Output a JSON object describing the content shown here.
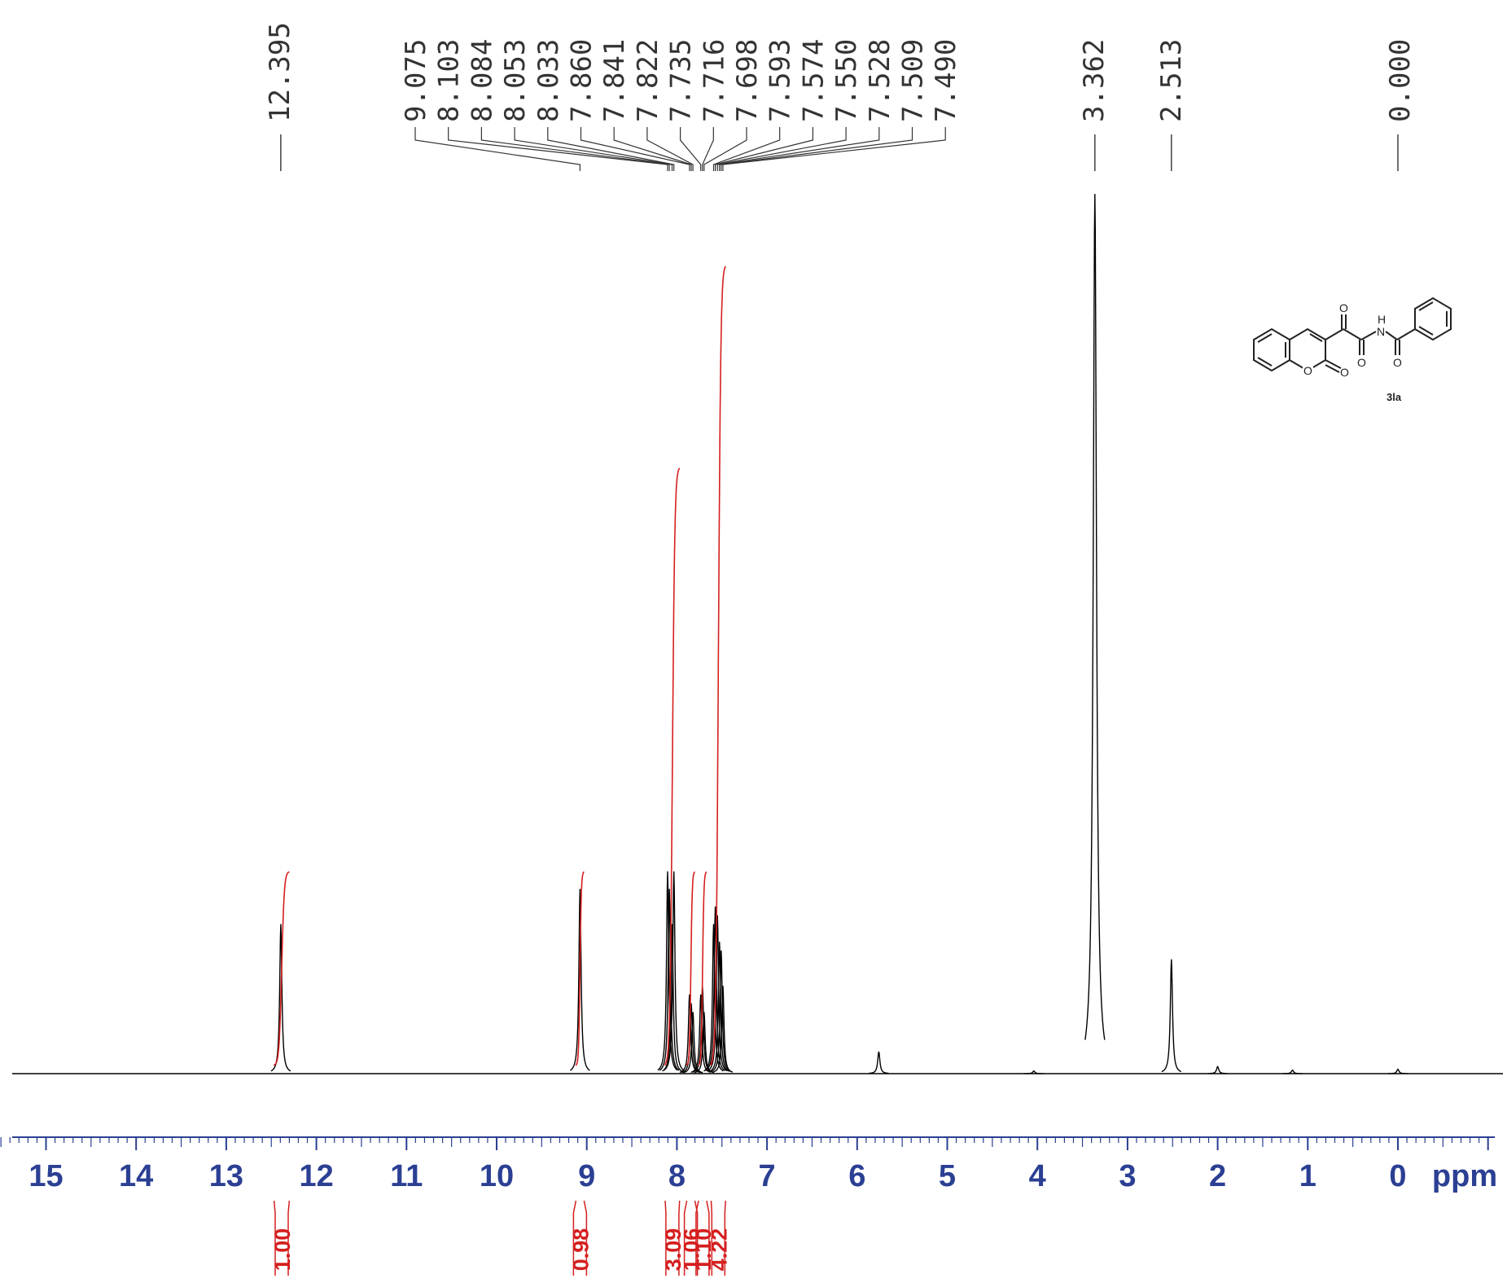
{
  "chart_data": {
    "type": "line",
    "xlabel": "",
    "xunit": "ppm",
    "xlim": [
      15.5,
      -1.0
    ],
    "x_reversed": true,
    "x_ticks": [
      "15",
      "14",
      "13",
      "12",
      "11",
      "10",
      "9",
      "8",
      "7",
      "6",
      "5",
      "4",
      "3",
      "2",
      "1",
      "0"
    ],
    "peak_labels": [
      "12.395",
      "9.075",
      "8.103",
      "8.084",
      "8.053",
      "8.033",
      "7.860",
      "7.841",
      "7.822",
      "7.735",
      "7.716",
      "7.698",
      "7.593",
      "7.574",
      "7.550",
      "7.528",
      "7.509",
      "7.490",
      "3.362",
      "2.513",
      "0.000"
    ],
    "peaks": [
      {
        "x": 12.395,
        "y": 0.17
      },
      {
        "x": 9.075,
        "y": 0.21
      },
      {
        "x": 8.103,
        "y": 0.23
      },
      {
        "x": 8.084,
        "y": 0.21
      },
      {
        "x": 8.053,
        "y": 0.17
      },
      {
        "x": 8.033,
        "y": 0.23
      },
      {
        "x": 7.86,
        "y": 0.09
      },
      {
        "x": 7.841,
        "y": 0.08
      },
      {
        "x": 7.822,
        "y": 0.07
      },
      {
        "x": 7.735,
        "y": 0.09
      },
      {
        "x": 7.716,
        "y": 0.1
      },
      {
        "x": 7.698,
        "y": 0.07
      },
      {
        "x": 7.593,
        "y": 0.17
      },
      {
        "x": 7.574,
        "y": 0.19
      },
      {
        "x": 7.55,
        "y": 0.18
      },
      {
        "x": 7.528,
        "y": 0.15
      },
      {
        "x": 7.509,
        "y": 0.14
      },
      {
        "x": 7.49,
        "y": 0.1
      },
      {
        "x": 5.76,
        "y": 0.025
      },
      {
        "x": 4.04,
        "y": 0.003
      },
      {
        "x": 3.362,
        "y": 1.0
      },
      {
        "x": 2.513,
        "y": 0.13
      },
      {
        "x": 2.0,
        "y": 0.008
      },
      {
        "x": 1.17,
        "y": 0.004
      },
      {
        "x": 0.0,
        "y": 0.005
      }
    ],
    "integrals": [
      {
        "from": 12.47,
        "to": 12.3,
        "value": "1.00",
        "rise": 0.23
      },
      {
        "from": 9.12,
        "to": 9.03,
        "value": "0.98",
        "rise": 0.23
      },
      {
        "from": 8.13,
        "to": 7.97,
        "value": "3.09",
        "rise": 0.69
      },
      {
        "from": 7.89,
        "to": 7.8,
        "value": "1.06",
        "rise": 0.23
      },
      {
        "from": 7.76,
        "to": 7.67,
        "value": "1.10",
        "rise": 0.23
      },
      {
        "from": 7.62,
        "to": 7.46,
        "value": "4.22",
        "rise": 0.92
      }
    ],
    "compound_label": "3la",
    "colors": {
      "spectrum": "#000000",
      "integral": "#d51f1f",
      "axis": "#2b3f93",
      "labels": "#333333"
    }
  }
}
